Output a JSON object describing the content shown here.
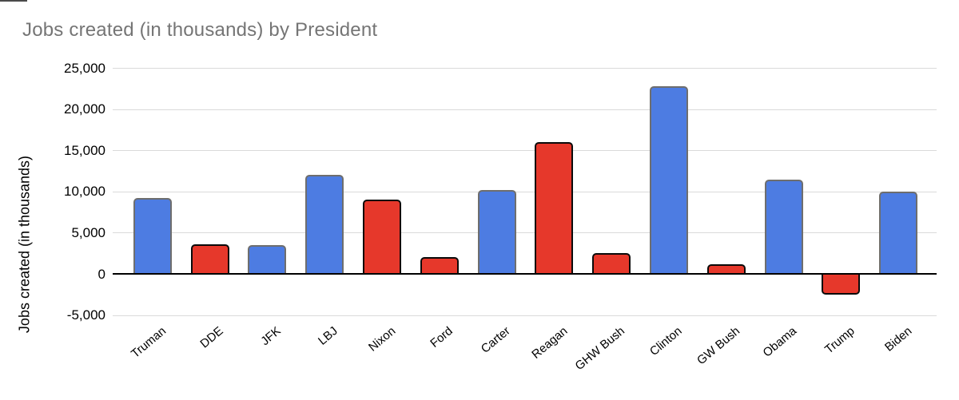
{
  "chart_data": {
    "type": "bar",
    "title": "Jobs created (in thousands) by President",
    "ylabel": "Jobs created (in thousands)",
    "xlabel": "",
    "categories": [
      "Truman",
      "DDE",
      "JFK",
      "LBJ",
      "Nixon",
      "Ford",
      "Carter",
      "Reagan",
      "GHW Bush",
      "Clinton",
      "GW Bush",
      "Obama",
      "Trump",
      "Biden"
    ],
    "values": [
      9300,
      3600,
      3500,
      12100,
      9100,
      2100,
      10200,
      16000,
      2600,
      22800,
      1200,
      11500,
      -2500,
      10000
    ],
    "parties": [
      "D",
      "R",
      "D",
      "D",
      "R",
      "R",
      "D",
      "R",
      "R",
      "D",
      "R",
      "D",
      "R",
      "D"
    ],
    "yticks": [
      25000,
      20000,
      15000,
      10000,
      5000,
      0,
      -5000
    ],
    "ytick_labels": [
      "25,000",
      "20,000",
      "15,000",
      "10,000",
      "5,000",
      "0",
      "-5,000"
    ],
    "ylim": [
      -5000,
      25000
    ],
    "grid": true,
    "legend": "none",
    "colors": {
      "dem": "#4D7CE2",
      "rep": "#E6382B",
      "dem_border": "#6E6E6E",
      "rep_border": "#0A0A0A",
      "grid": "#DADADA",
      "axis": "#000000",
      "title": "#757575",
      "background": "#FFFFFF"
    }
  }
}
